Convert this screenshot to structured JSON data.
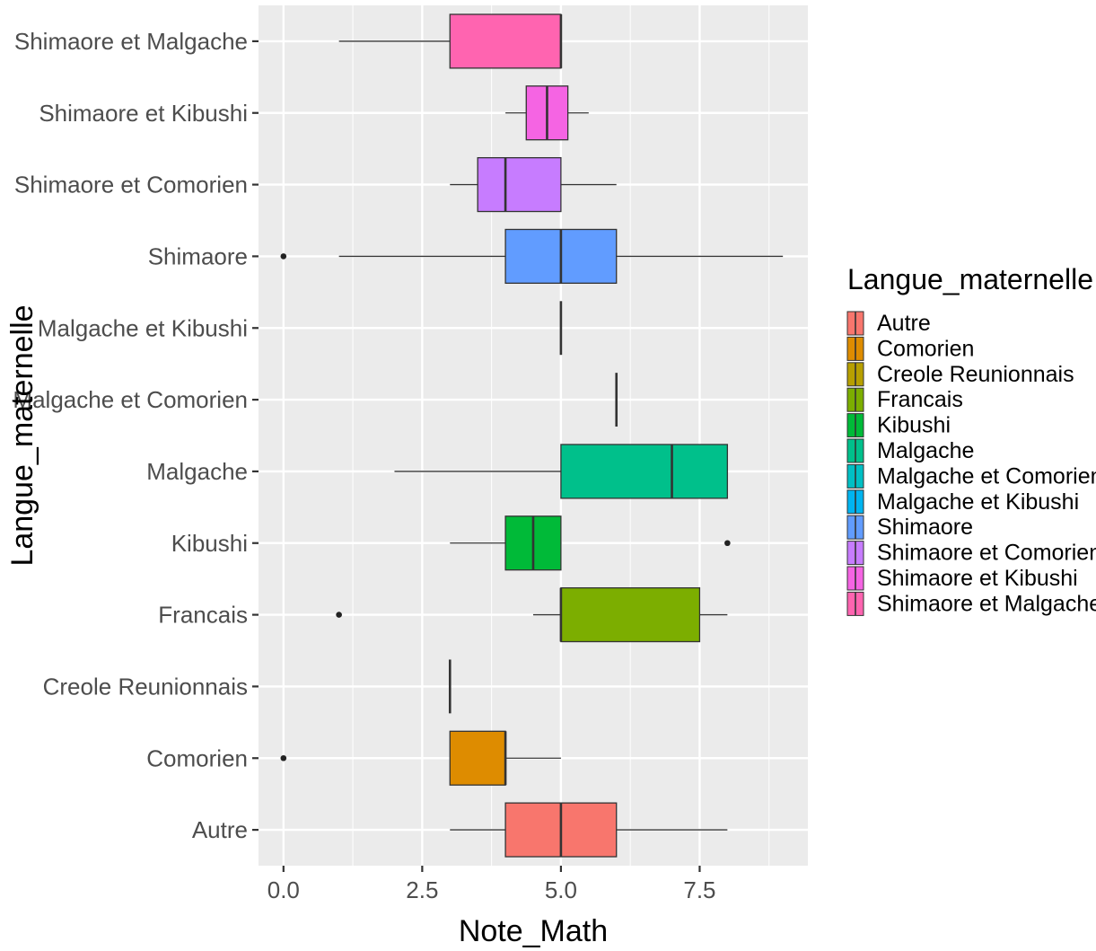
{
  "chart_data": {
    "type": "boxplot",
    "orientation": "horizontal",
    "xlabel": "Note_Math",
    "ylabel": "Langue_maternelle",
    "xlim": [
      -0.45,
      9.45
    ],
    "x_ticks": [
      0,
      2.5,
      5,
      7.5
    ],
    "x_tick_labels": [
      "0.0",
      "2.5",
      "5.0",
      "7.5"
    ],
    "grid": true,
    "legend": {
      "title": "Langue_maternelle",
      "position": "right"
    },
    "categories": [
      "Autre",
      "Comorien",
      "Creole Reunionnais",
      "Francais",
      "Kibushi",
      "Malgache",
      "Malgache et Comorien",
      "Malgache et Kibushi",
      "Shimaore",
      "Shimaore et Comorien",
      "Shimaore et Kibushi",
      "Shimaore et Malgache"
    ],
    "series": [
      {
        "name": "Autre",
        "color": "#F8766D",
        "whisker_low": 3,
        "q1": 4,
        "median": 5,
        "q3": 6,
        "whisker_high": 8,
        "outliers": []
      },
      {
        "name": "Comorien",
        "color": "#DE8C00",
        "whisker_low": 3,
        "q1": 3,
        "median": 4,
        "q3": 4,
        "whisker_high": 5,
        "outliers": [
          0
        ]
      },
      {
        "name": "Creole Reunionnais",
        "color": "#B79F00",
        "whisker_low": 3,
        "q1": 3,
        "median": 3,
        "q3": 3,
        "whisker_high": 3,
        "outliers": []
      },
      {
        "name": "Francais",
        "color": "#7CAE00",
        "whisker_low": 4.5,
        "q1": 5,
        "median": 5,
        "q3": 7.5,
        "whisker_high": 8,
        "outliers": [
          1
        ]
      },
      {
        "name": "Kibushi",
        "color": "#00BA38",
        "whisker_low": 3,
        "q1": 4,
        "median": 4.5,
        "q3": 5,
        "whisker_high": 5,
        "outliers": [
          8
        ]
      },
      {
        "name": "Malgache",
        "color": "#00C08B",
        "whisker_low": 2,
        "q1": 5,
        "median": 7,
        "q3": 8,
        "whisker_high": 8,
        "outliers": []
      },
      {
        "name": "Malgache et Comorien",
        "color": "#00BFC4",
        "whisker_low": 6,
        "q1": 6,
        "median": 6,
        "q3": 6,
        "whisker_high": 6,
        "outliers": []
      },
      {
        "name": "Malgache et Kibushi",
        "color": "#00B4F0",
        "whisker_low": 5,
        "q1": 5,
        "median": 5,
        "q3": 5,
        "whisker_high": 5,
        "outliers": []
      },
      {
        "name": "Shimaore",
        "color": "#619CFF",
        "whisker_low": 1,
        "q1": 4,
        "median": 5,
        "q3": 6,
        "whisker_high": 9,
        "outliers": [
          0
        ]
      },
      {
        "name": "Shimaore et Comorien",
        "color": "#C77CFF",
        "whisker_low": 3,
        "q1": 3.5,
        "median": 4,
        "q3": 5,
        "whisker_high": 6,
        "outliers": []
      },
      {
        "name": "Shimaore et Kibushi",
        "color": "#F564E3",
        "whisker_low": 4,
        "q1": 4.375,
        "median": 4.75,
        "q3": 5.125,
        "whisker_high": 5.5,
        "outliers": []
      },
      {
        "name": "Shimaore et Malgache",
        "color": "#FF64B0",
        "whisker_low": 1,
        "q1": 3,
        "median": 5,
        "q3": 5,
        "whisker_high": 5,
        "outliers": []
      }
    ]
  }
}
